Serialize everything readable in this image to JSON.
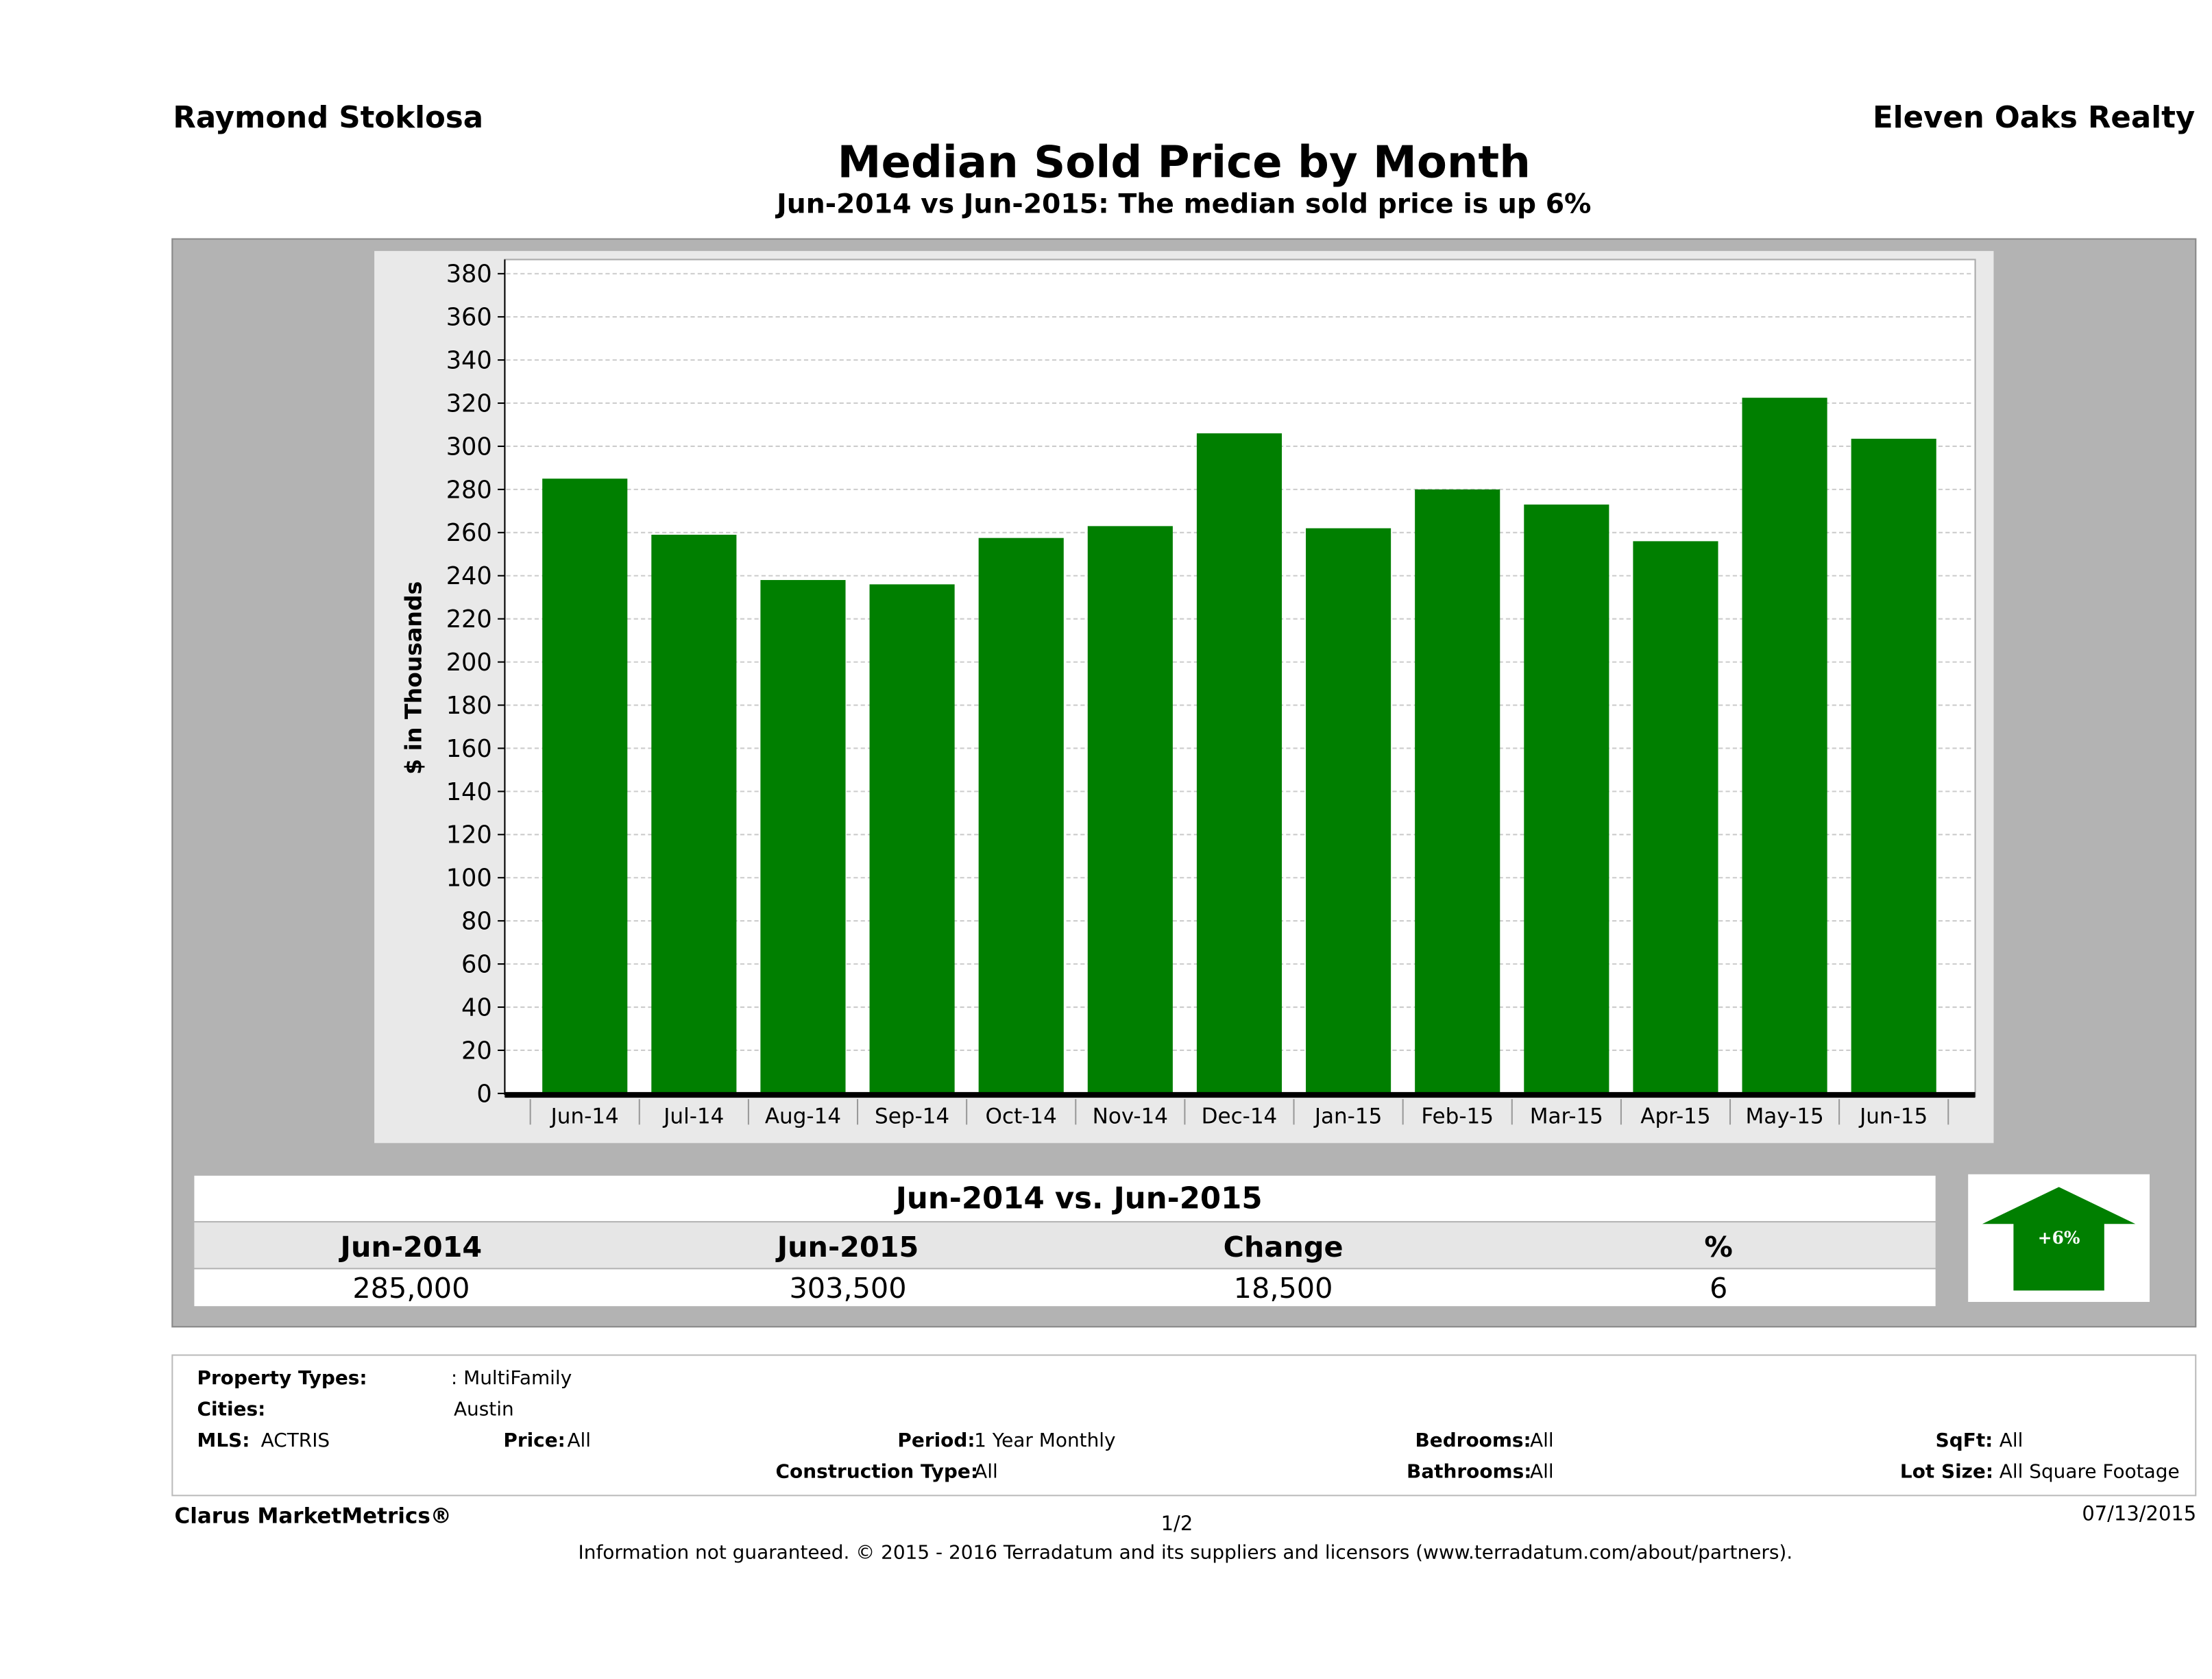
{
  "header": {
    "agent": "Raymond Stoklosa",
    "brokerage": "Eleven Oaks Realty"
  },
  "chart_data": {
    "type": "bar",
    "title": "Median Sold Price by Month",
    "subtitle": "Jun-2014 vs Jun-2015: The median sold price is up 6%",
    "xlabel": "",
    "ylabel": "$ in Thousands",
    "ylim": [
      0,
      380
    ],
    "yticks": [
      0,
      20,
      40,
      60,
      80,
      100,
      120,
      140,
      160,
      180,
      200,
      220,
      240,
      260,
      280,
      300,
      320,
      340,
      360,
      380
    ],
    "grid": true,
    "bar_color": "#007f00",
    "categories": [
      "Jun-14",
      "Jul-14",
      "Aug-14",
      "Sep-14",
      "Oct-14",
      "Nov-14",
      "Dec-14",
      "Jan-15",
      "Feb-15",
      "Mar-15",
      "Apr-15",
      "May-15",
      "Jun-15"
    ],
    "values": [
      285,
      259,
      238,
      236,
      257.5,
      263,
      306,
      262,
      280,
      273,
      256,
      322.5,
      303.5
    ]
  },
  "summary": {
    "heading": "Jun-2014 vs. Jun-2015",
    "columns": [
      "Jun-2014",
      "Jun-2015",
      "Change",
      "%"
    ],
    "values": [
      "285,000",
      "303,500",
      "18,500",
      "6"
    ],
    "badge": "+6%"
  },
  "criteria": {
    "property_types_label": "Property Types:",
    "property_types": ": MultiFamily",
    "cities_label": "Cities:",
    "cities": "Austin",
    "mls_label": "MLS:",
    "mls": "ACTRIS",
    "price_label": "Price:",
    "price": "All",
    "period_label": "Period:",
    "period": "1 Year Monthly",
    "construction_label": "Construction Type:",
    "construction": "All",
    "bedrooms_label": "Bedrooms:",
    "bedrooms": "All",
    "bathrooms_label": "Bathrooms:",
    "bathrooms": "All",
    "sqft_label": "SqFt:",
    "sqft": "All",
    "lot_label": "Lot Size:",
    "lot": "All Square Footage"
  },
  "footer": {
    "brand": "Clarus MarketMetrics®",
    "page": "1/2",
    "date": "07/13/2015",
    "disclaimer": "Information not guaranteed. © 2015 - 2016 Terradatum and its suppliers and licensors (www.terradatum.com/about/partners)."
  }
}
